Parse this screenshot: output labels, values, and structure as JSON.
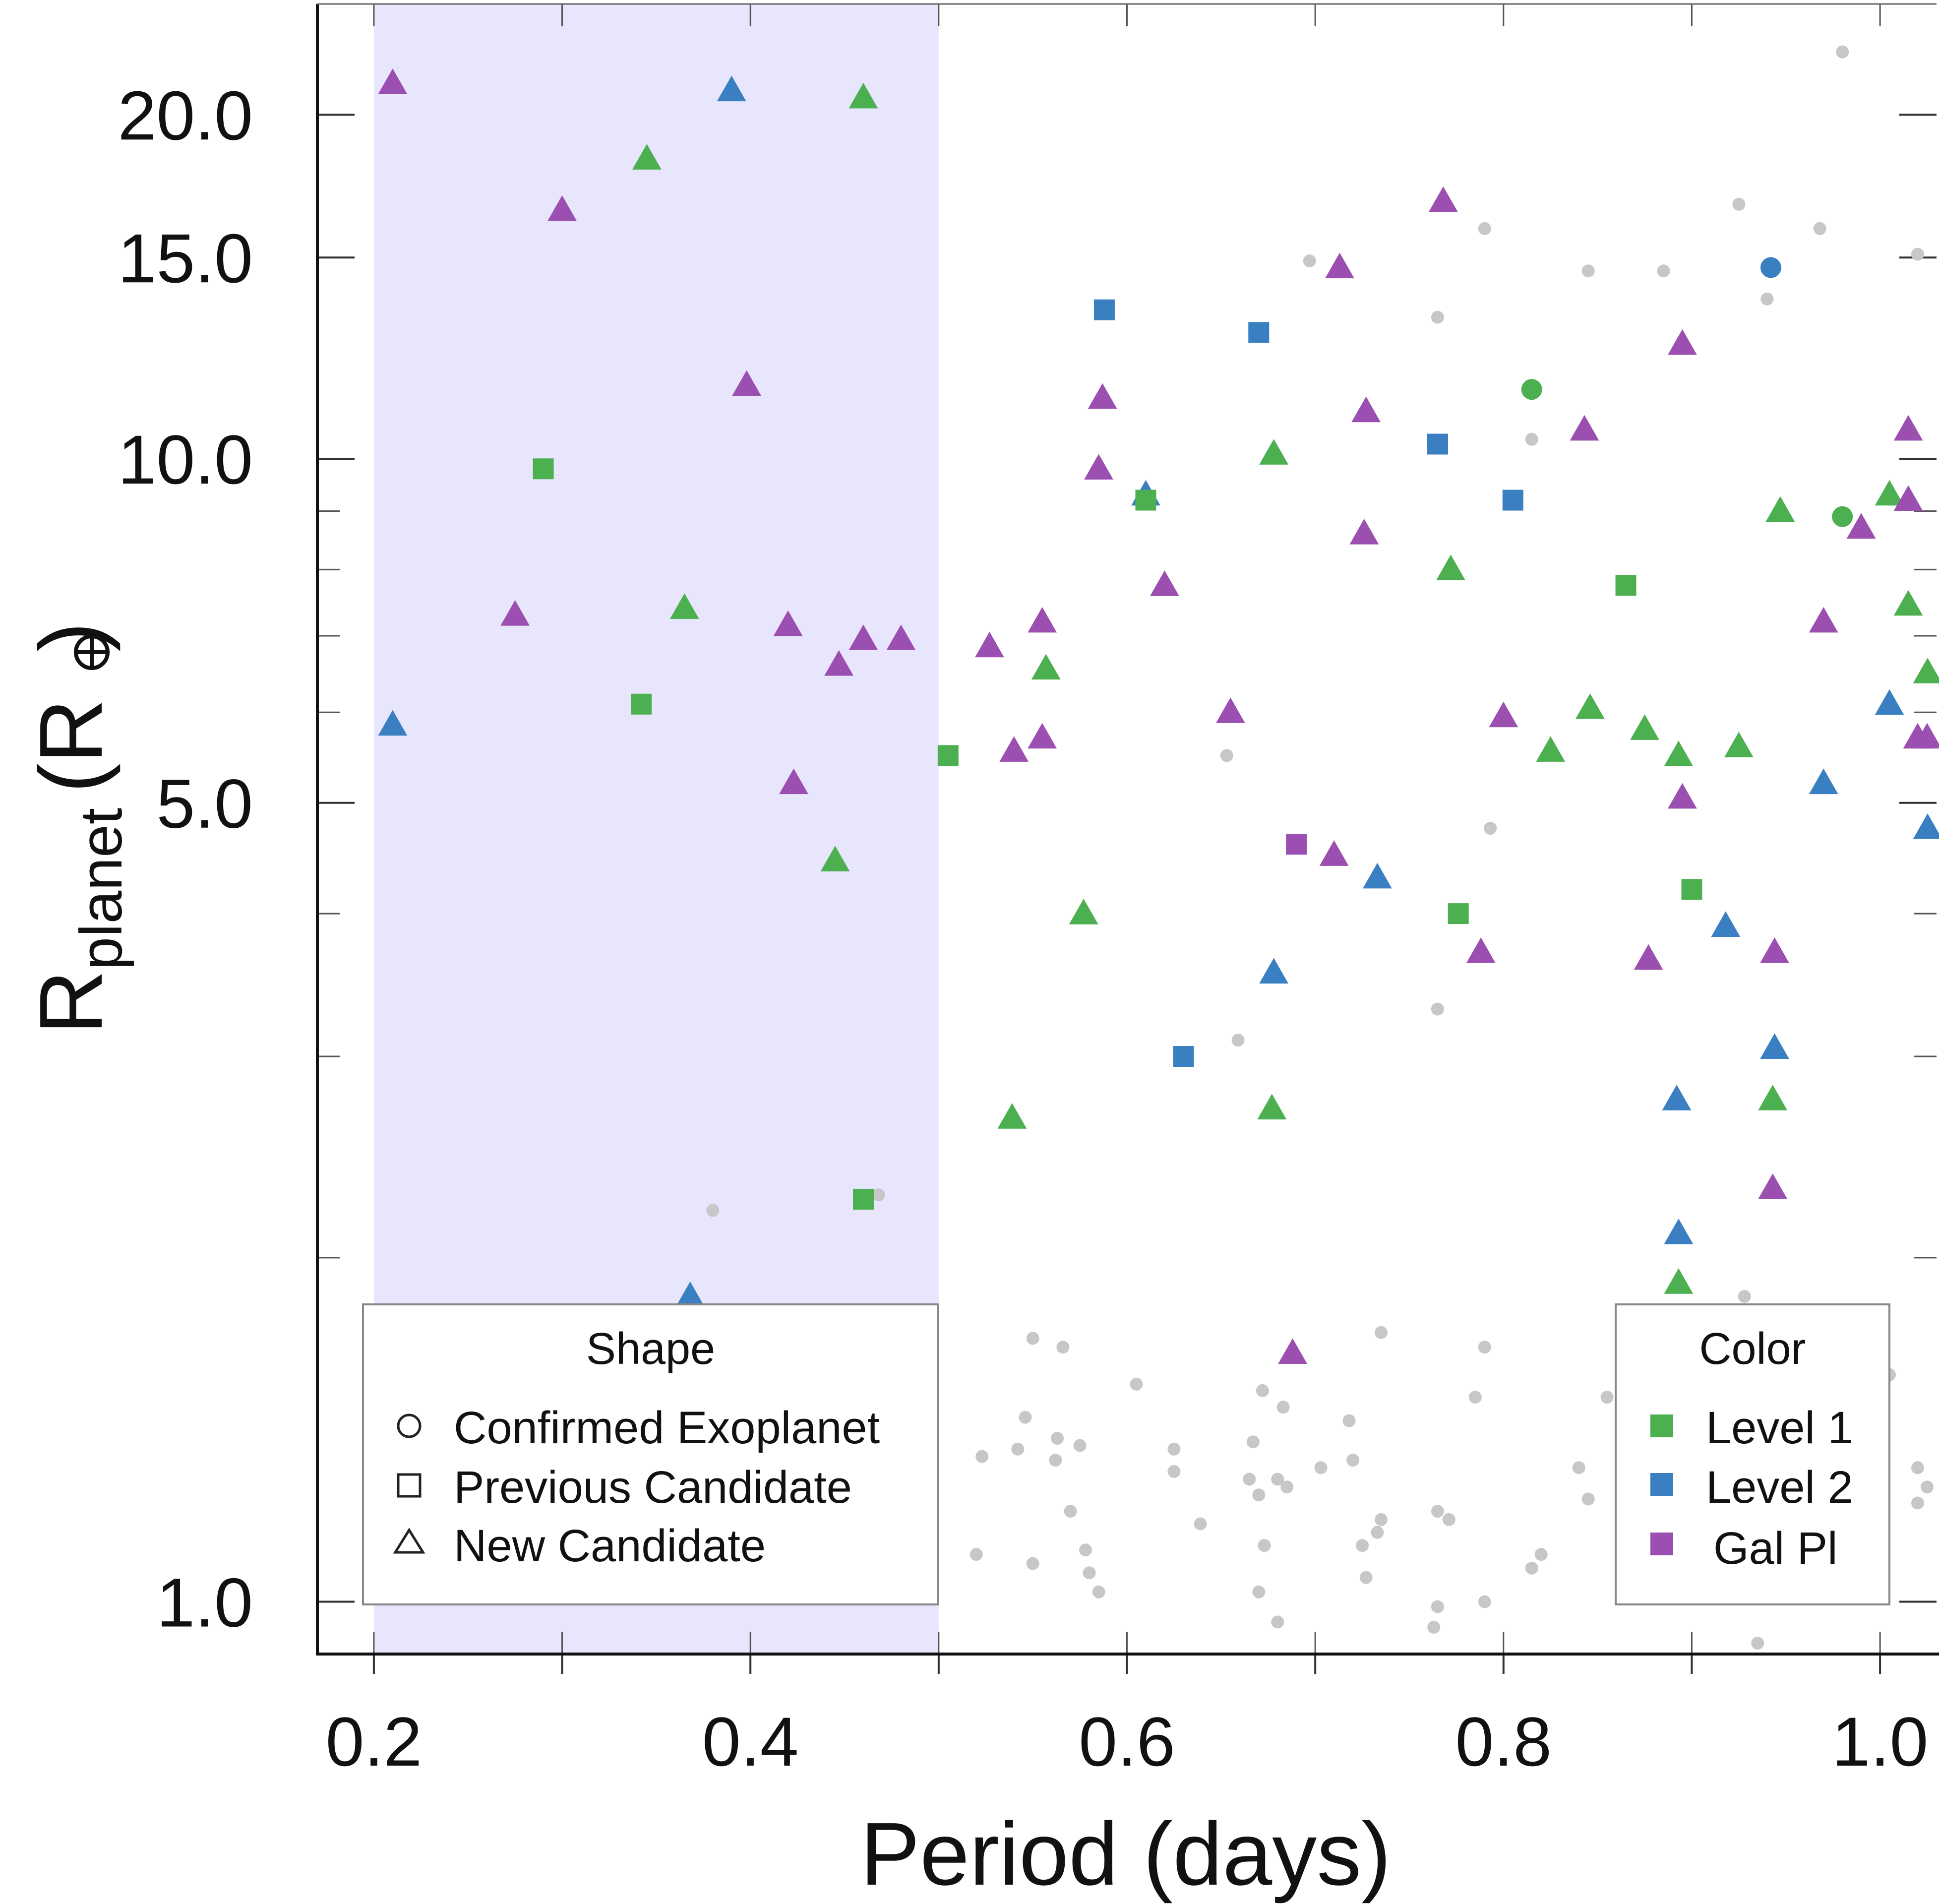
{
  "chart_data": {
    "type": "scatter",
    "xlabel": "Period (days)",
    "ylabel_main": "R",
    "ylabel_sub": "planet",
    "ylabel_unit_open": "(",
    "ylabel_unit": "R",
    "ylabel_unit_close": ")",
    "x_range": [
      0.17,
      1.03
    ],
    "y_range": [
      0.9,
      25.0
    ],
    "y_scale": "log",
    "x_ticks": [
      {
        "value": 0.2,
        "label": "0.2"
      },
      {
        "value": 0.4,
        "label": "0.4"
      },
      {
        "value": 0.6,
        "label": "0.6"
      },
      {
        "value": 0.8,
        "label": "0.8"
      },
      {
        "value": 1.0,
        "label": "1.0"
      }
    ],
    "x_minor_ticks": [
      0.2,
      0.3,
      0.4,
      0.5,
      0.6,
      0.7,
      0.8,
      0.9,
      1.0
    ],
    "y_ticks": [
      {
        "value": 1.0,
        "label": "1.0"
      },
      {
        "value": 5.0,
        "label": "5.0"
      },
      {
        "value": 10.0,
        "label": "10.0"
      },
      {
        "value": 15.0,
        "label": "15.0"
      },
      {
        "value": 20.0,
        "label": "20.0"
      }
    ],
    "y_minor_ticks": [
      1,
      2,
      3,
      4,
      5,
      6,
      7,
      8,
      9,
      10,
      15,
      20,
      25
    ],
    "highlight_region": {
      "x_from": 0.2,
      "x_to": 0.5
    },
    "colors": {
      "level1": "#4caf50",
      "level2": "#3a7fc1",
      "level3": "#9b4fb0",
      "background": "#c7c7c7",
      "region": "#e8e6fd"
    },
    "legend_shape": {
      "title": "Shape",
      "placement": "bottom-left",
      "entries": [
        {
          "shape": "circle",
          "label": "Confirmed Exoplanet"
        },
        {
          "shape": "square",
          "label": "Previous Candidate"
        },
        {
          "shape": "triangle",
          "label": "New Candidate"
        }
      ]
    },
    "legend_color": {
      "title": "Color",
      "placement": "bottom-right",
      "entries": [
        {
          "color": "level1",
          "label": "Level 1"
        },
        {
          "color": "level2",
          "label": "Level 2"
        },
        {
          "color": "level3",
          "label": "Gal Pl"
        }
      ]
    },
    "points": [
      {
        "x": 0.21,
        "y": 21.3,
        "shape": "triangle",
        "color": "level3"
      },
      {
        "x": 0.39,
        "y": 21.0,
        "shape": "triangle",
        "color": "level2"
      },
      {
        "x": 0.46,
        "y": 20.7,
        "shape": "triangle",
        "color": "level1"
      },
      {
        "x": 0.345,
        "y": 18.3,
        "shape": "triangle",
        "color": "level1"
      },
      {
        "x": 0.3,
        "y": 16.5,
        "shape": "triangle",
        "color": "level3"
      },
      {
        "x": 0.398,
        "y": 11.6,
        "shape": "triangle",
        "color": "level3"
      },
      {
        "x": 0.29,
        "y": 9.8,
        "shape": "square",
        "color": "level1"
      },
      {
        "x": 0.275,
        "y": 7.3,
        "shape": "triangle",
        "color": "level3"
      },
      {
        "x": 0.365,
        "y": 7.4,
        "shape": "triangle",
        "color": "level1"
      },
      {
        "x": 0.42,
        "y": 7.15,
        "shape": "triangle",
        "color": "level3"
      },
      {
        "x": 0.46,
        "y": 6.95,
        "shape": "triangle",
        "color": "level3"
      },
      {
        "x": 0.48,
        "y": 6.95,
        "shape": "triangle",
        "color": "level3"
      },
      {
        "x": 0.447,
        "y": 6.6,
        "shape": "triangle",
        "color": "level3"
      },
      {
        "x": 0.21,
        "y": 5.85,
        "shape": "triangle",
        "color": "level2"
      },
      {
        "x": 0.342,
        "y": 6.1,
        "shape": "square",
        "color": "level1"
      },
      {
        "x": 0.423,
        "y": 5.2,
        "shape": "triangle",
        "color": "level3"
      },
      {
        "x": 0.445,
        "y": 4.45,
        "shape": "triangle",
        "color": "level1"
      },
      {
        "x": 0.46,
        "y": 2.25,
        "shape": "square",
        "color": "level1"
      },
      {
        "x": 0.368,
        "y": 1.85,
        "shape": "triangle",
        "color": "level2"
      },
      {
        "x": 0.505,
        "y": 5.5,
        "shape": "square",
        "color": "level1"
      },
      {
        "x": 0.588,
        "y": 13.5,
        "shape": "square",
        "color": "level2"
      },
      {
        "x": 0.67,
        "y": 12.9,
        "shape": "square",
        "color": "level2"
      },
      {
        "x": 0.587,
        "y": 11.3,
        "shape": "triangle",
        "color": "level3"
      },
      {
        "x": 0.585,
        "y": 9.8,
        "shape": "triangle",
        "color": "level3"
      },
      {
        "x": 0.61,
        "y": 9.3,
        "shape": "triangle",
        "color": "level2"
      },
      {
        "x": 0.61,
        "y": 9.2,
        "shape": "square",
        "color": "level1"
      },
      {
        "x": 0.678,
        "y": 10.1,
        "shape": "triangle",
        "color": "level1"
      },
      {
        "x": 0.62,
        "y": 7.75,
        "shape": "triangle",
        "color": "level3"
      },
      {
        "x": 0.555,
        "y": 7.2,
        "shape": "triangle",
        "color": "level3"
      },
      {
        "x": 0.527,
        "y": 6.85,
        "shape": "triangle",
        "color": "level3"
      },
      {
        "x": 0.557,
        "y": 6.55,
        "shape": "triangle",
        "color": "level1"
      },
      {
        "x": 0.655,
        "y": 6.0,
        "shape": "triangle",
        "color": "level3"
      },
      {
        "x": 0.555,
        "y": 5.7,
        "shape": "triangle",
        "color": "level3"
      },
      {
        "x": 0.54,
        "y": 5.55,
        "shape": "triangle",
        "color": "level3"
      },
      {
        "x": 0.713,
        "y": 14.7,
        "shape": "triangle",
        "color": "level3"
      },
      {
        "x": 0.768,
        "y": 16.8,
        "shape": "triangle",
        "color": "level3"
      },
      {
        "x": 0.727,
        "y": 11.0,
        "shape": "triangle",
        "color": "level3"
      },
      {
        "x": 0.765,
        "y": 10.3,
        "shape": "square",
        "color": "level2"
      },
      {
        "x": 0.726,
        "y": 8.6,
        "shape": "triangle",
        "color": "level3"
      },
      {
        "x": 0.772,
        "y": 8.0,
        "shape": "triangle",
        "color": "level1"
      },
      {
        "x": 0.805,
        "y": 9.2,
        "shape": "square",
        "color": "level2"
      },
      {
        "x": 0.815,
        "y": 11.5,
        "shape": "circle",
        "color": "level1"
      },
      {
        "x": 0.843,
        "y": 10.6,
        "shape": "triangle",
        "color": "level3"
      },
      {
        "x": 0.865,
        "y": 7.75,
        "shape": "square",
        "color": "level1"
      },
      {
        "x": 0.846,
        "y": 6.05,
        "shape": "triangle",
        "color": "level1"
      },
      {
        "x": 0.8,
        "y": 5.95,
        "shape": "triangle",
        "color": "level3"
      },
      {
        "x": 0.875,
        "y": 5.8,
        "shape": "triangle",
        "color": "level1"
      },
      {
        "x": 0.825,
        "y": 5.55,
        "shape": "triangle",
        "color": "level1"
      },
      {
        "x": 0.893,
        "y": 5.5,
        "shape": "triangle",
        "color": "level1"
      },
      {
        "x": 0.925,
        "y": 5.6,
        "shape": "triangle",
        "color": "level1"
      },
      {
        "x": 0.895,
        "y": 12.6,
        "shape": "triangle",
        "color": "level3"
      },
      {
        "x": 0.942,
        "y": 14.7,
        "shape": "circle",
        "color": "level2"
      },
      {
        "x": 0.895,
        "y": 5.05,
        "shape": "triangle",
        "color": "level3"
      },
      {
        "x": 0.69,
        "y": 4.6,
        "shape": "square",
        "color": "level3"
      },
      {
        "x": 0.71,
        "y": 4.5,
        "shape": "triangle",
        "color": "level3"
      },
      {
        "x": 0.733,
        "y": 4.3,
        "shape": "triangle",
        "color": "level2"
      },
      {
        "x": 0.577,
        "y": 4.0,
        "shape": "triangle",
        "color": "level1"
      },
      {
        "x": 0.678,
        "y": 3.55,
        "shape": "triangle",
        "color": "level2"
      },
      {
        "x": 0.776,
        "y": 4.0,
        "shape": "square",
        "color": "level1"
      },
      {
        "x": 0.788,
        "y": 3.7,
        "shape": "triangle",
        "color": "level3"
      },
      {
        "x": 0.63,
        "y": 3.0,
        "shape": "square",
        "color": "level2"
      },
      {
        "x": 0.677,
        "y": 2.7,
        "shape": "triangle",
        "color": "level1"
      },
      {
        "x": 0.539,
        "y": 2.65,
        "shape": "triangle",
        "color": "level1"
      },
      {
        "x": 0.9,
        "y": 4.2,
        "shape": "square",
        "color": "level1"
      },
      {
        "x": 0.918,
        "y": 3.9,
        "shape": "triangle",
        "color": "level2"
      },
      {
        "x": 0.877,
        "y": 3.65,
        "shape": "triangle",
        "color": "level3"
      },
      {
        "x": 0.944,
        "y": 3.7,
        "shape": "triangle",
        "color": "level3"
      },
      {
        "x": 0.944,
        "y": 3.05,
        "shape": "triangle",
        "color": "level2"
      },
      {
        "x": 0.892,
        "y": 2.75,
        "shape": "triangle",
        "color": "level2"
      },
      {
        "x": 0.943,
        "y": 2.75,
        "shape": "triangle",
        "color": "level1"
      },
      {
        "x": 0.893,
        "y": 2.1,
        "shape": "triangle",
        "color": "level2"
      },
      {
        "x": 0.943,
        "y": 2.3,
        "shape": "triangle",
        "color": "level3"
      },
      {
        "x": 0.893,
        "y": 1.9,
        "shape": "triangle",
        "color": "level1"
      },
      {
        "x": 0.688,
        "y": 1.65,
        "shape": "triangle",
        "color": "level3"
      },
      {
        "x": 0.98,
        "y": 8.9,
        "shape": "circle",
        "color": "level1"
      },
      {
        "x": 0.947,
        "y": 9.0,
        "shape": "triangle",
        "color": "level1"
      },
      {
        "x": 0.99,
        "y": 8.7,
        "shape": "triangle",
        "color": "level3"
      },
      {
        "x": 1.005,
        "y": 9.3,
        "shape": "triangle",
        "color": "level1"
      },
      {
        "x": 1.015,
        "y": 9.2,
        "shape": "triangle",
        "color": "level3"
      },
      {
        "x": 1.015,
        "y": 10.6,
        "shape": "triangle",
        "color": "level3"
      },
      {
        "x": 0.97,
        "y": 7.2,
        "shape": "triangle",
        "color": "level3"
      },
      {
        "x": 1.015,
        "y": 7.45,
        "shape": "triangle",
        "color": "level1"
      },
      {
        "x": 1.03,
        "y": 6.5,
        "shape": "triangle",
        "color": "level1"
      },
      {
        "x": 1.005,
        "y": 6.1,
        "shape": "triangle",
        "color": "level2"
      },
      {
        "x": 1.02,
        "y": 5.7,
        "shape": "triangle",
        "color": "level3"
      },
      {
        "x": 1.025,
        "y": 5.7,
        "shape": "triangle",
        "color": "level3"
      },
      {
        "x": 0.97,
        "y": 5.2,
        "shape": "triangle",
        "color": "level2"
      },
      {
        "x": 1.03,
        "y": 4.75,
        "shape": "triangle",
        "color": "level2"
      }
    ],
    "background_points": [
      {
        "x": 0.98,
        "y": 22.7
      },
      {
        "x": 0.925,
        "y": 16.7
      },
      {
        "x": 0.79,
        "y": 15.9
      },
      {
        "x": 0.968,
        "y": 15.9
      },
      {
        "x": 0.697,
        "y": 14.9
      },
      {
        "x": 0.845,
        "y": 14.6
      },
      {
        "x": 0.885,
        "y": 14.6
      },
      {
        "x": 1.02,
        "y": 15.1
      },
      {
        "x": 0.94,
        "y": 13.8
      },
      {
        "x": 0.765,
        "y": 13.3
      },
      {
        "x": 0.815,
        "y": 10.4
      },
      {
        "x": 0.653,
        "y": 5.5
      },
      {
        "x": 0.793,
        "y": 4.75
      },
      {
        "x": 0.765,
        "y": 3.3
      },
      {
        "x": 0.659,
        "y": 3.1
      },
      {
        "x": 0.38,
        "y": 2.2
      },
      {
        "x": 0.468,
        "y": 2.27
      },
      {
        "x": 0.928,
        "y": 1.85
      },
      {
        "x": 0.55,
        "y": 1.7
      },
      {
        "x": 0.566,
        "y": 1.67
      },
      {
        "x": 0.735,
        "y": 1.72
      },
      {
        "x": 0.79,
        "y": 1.67
      },
      {
        "x": 0.605,
        "y": 1.55
      },
      {
        "x": 0.672,
        "y": 1.53
      },
      {
        "x": 0.683,
        "y": 1.48
      },
      {
        "x": 0.546,
        "y": 1.45
      },
      {
        "x": 0.785,
        "y": 1.51
      },
      {
        "x": 0.718,
        "y": 1.44
      },
      {
        "x": 0.855,
        "y": 1.51
      },
      {
        "x": 1.005,
        "y": 1.58
      },
      {
        "x": 0.563,
        "y": 1.39
      },
      {
        "x": 0.625,
        "y": 1.36
      },
      {
        "x": 0.667,
        "y": 1.38
      },
      {
        "x": 0.575,
        "y": 1.37
      },
      {
        "x": 0.542,
        "y": 1.36
      },
      {
        "x": 0.523,
        "y": 1.34
      },
      {
        "x": 0.562,
        "y": 1.33
      },
      {
        "x": 0.625,
        "y": 1.3
      },
      {
        "x": 0.703,
        "y": 1.31
      },
      {
        "x": 0.72,
        "y": 1.33
      },
      {
        "x": 0.84,
        "y": 1.31
      },
      {
        "x": 1.02,
        "y": 1.31
      },
      {
        "x": 0.665,
        "y": 1.28
      },
      {
        "x": 0.68,
        "y": 1.28
      },
      {
        "x": 0.685,
        "y": 1.26
      },
      {
        "x": 0.67,
        "y": 1.24
      },
      {
        "x": 0.845,
        "y": 1.23
      },
      {
        "x": 1.025,
        "y": 1.26
      },
      {
        "x": 1.02,
        "y": 1.22
      },
      {
        "x": 0.57,
        "y": 1.2
      },
      {
        "x": 0.765,
        "y": 1.2
      },
      {
        "x": 0.771,
        "y": 1.18
      },
      {
        "x": 0.735,
        "y": 1.18
      },
      {
        "x": 0.639,
        "y": 1.17
      },
      {
        "x": 0.733,
        "y": 1.15
      },
      {
        "x": 0.673,
        "y": 1.12
      },
      {
        "x": 0.725,
        "y": 1.12
      },
      {
        "x": 0.578,
        "y": 1.11
      },
      {
        "x": 0.52,
        "y": 1.1
      },
      {
        "x": 0.55,
        "y": 1.08
      },
      {
        "x": 0.58,
        "y": 1.06
      },
      {
        "x": 0.82,
        "y": 1.1
      },
      {
        "x": 0.815,
        "y": 1.07
      },
      {
        "x": 0.727,
        "y": 1.05
      },
      {
        "x": 0.585,
        "y": 1.02
      },
      {
        "x": 0.67,
        "y": 1.02
      },
      {
        "x": 0.79,
        "y": 1.0
      },
      {
        "x": 0.765,
        "y": 0.99
      },
      {
        "x": 0.68,
        "y": 0.96
      },
      {
        "x": 0.763,
        "y": 0.95
      },
      {
        "x": 0.935,
        "y": 0.92
      },
      {
        "x": 0.69,
        "y": 0.905
      }
    ]
  }
}
